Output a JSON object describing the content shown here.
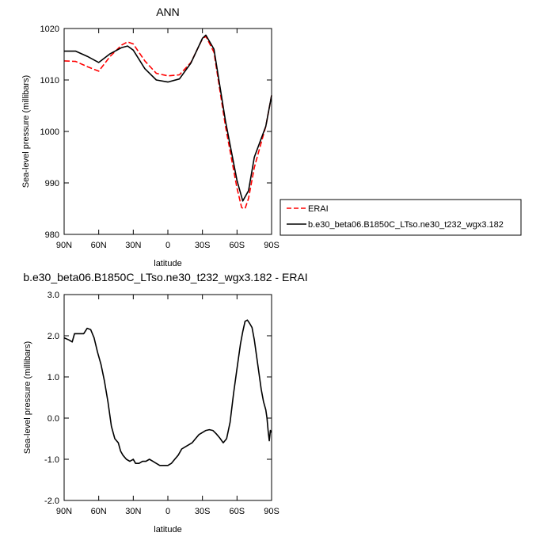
{
  "chart_data": [
    {
      "type": "line",
      "title": "ANN",
      "xlabel": "latitude",
      "ylabel": "Sea-level pressure (millibars)",
      "xlim": [
        90,
        -90
      ],
      "ylim": [
        980,
        1020
      ],
      "xticks": [
        90,
        60,
        30,
        0,
        -30,
        -60,
        -90
      ],
      "xtick_labels": [
        "90N",
        "60N",
        "30N",
        "0",
        "30S",
        "60S",
        "90S"
      ],
      "yticks": [
        980,
        990,
        1000,
        1010,
        1020
      ],
      "ytick_labels": [
        "980",
        "990",
        "1000",
        "1010",
        "1020"
      ],
      "grid": false,
      "legend_position": "right",
      "series": [
        {
          "name": "ERAI",
          "color": "#ff0000",
          "style": "dashed",
          "x": [
            90,
            80,
            70,
            60,
            50,
            40,
            35,
            30,
            20,
            10,
            0,
            -10,
            -20,
            -30,
            -33,
            -40,
            -50,
            -60,
            -64,
            -67,
            -70,
            -75,
            -80,
            -85,
            -90
          ],
          "y": [
            1013.7,
            1013.6,
            1012.6,
            1011.7,
            1014.6,
            1016.8,
            1017.4,
            1017.0,
            1013.7,
            1011.3,
            1010.8,
            1011.0,
            1013.4,
            1018.0,
            1018.5,
            1015.4,
            1001.0,
            989.0,
            985.2,
            985.0,
            987.0,
            993.0,
            997.0,
            1001.0,
            1007.0
          ]
        },
        {
          "name": "b.e30_beta06.B1850C_LTso.ne30_t232_wgx3.182",
          "color": "#000000",
          "style": "solid",
          "x": [
            90,
            80,
            70,
            60,
            50,
            40,
            35,
            30,
            20,
            10,
            0,
            -10,
            -20,
            -30,
            -33,
            -40,
            -50,
            -60,
            -65,
            -70,
            -75,
            -80,
            -85,
            -90
          ],
          "y": [
            1015.6,
            1015.6,
            1014.6,
            1013.4,
            1015.1,
            1016.3,
            1016.6,
            1015.8,
            1012.2,
            1010.0,
            1009.6,
            1010.2,
            1013.3,
            1018.1,
            1018.7,
            1016.0,
            1002.0,
            990.5,
            986.5,
            988.5,
            995.0,
            998.0,
            1001.0,
            1007.0
          ]
        }
      ]
    },
    {
      "type": "line",
      "title": "b.e30_beta06.B1850C_LTso.ne30_t232_wgx3.182 - ERAI",
      "xlabel": "latitude",
      "ylabel": "Sea-level pressure (millibars)",
      "xlim": [
        90,
        -90
      ],
      "ylim": [
        -2.0,
        3.0
      ],
      "xticks": [
        90,
        60,
        30,
        0,
        -30,
        -60,
        -90
      ],
      "xtick_labels": [
        "90N",
        "60N",
        "30N",
        "0",
        "30S",
        "60S",
        "90S"
      ],
      "yticks": [
        -2.0,
        -1.0,
        0.0,
        1.0,
        2.0,
        3.0
      ],
      "ytick_labels": [
        "-2.0",
        "-1.0",
        "0.0",
        "1.0",
        "2.0",
        "3.0"
      ],
      "grid": false,
      "series": [
        {
          "color": "#000000",
          "style": "solid",
          "x": [
            90,
            86,
            83,
            81,
            78,
            73,
            70,
            67,
            64,
            61,
            58,
            55,
            52,
            49,
            46,
            43,
            41,
            39,
            36,
            33,
            30,
            28,
            25,
            22,
            19,
            16,
            13,
            10,
            7,
            4,
            0,
            -3,
            -6,
            -9,
            -12,
            -15,
            -18,
            -21,
            -24,
            -27,
            -30,
            -33,
            -36,
            -39,
            -42,
            -45,
            -48,
            -51,
            -54,
            -57,
            -60,
            -63,
            -65,
            -67,
            -69,
            -71,
            -73,
            -75,
            -77,
            -79,
            -81,
            -83,
            -85,
            -86,
            -87,
            -88,
            -89,
            -90
          ],
          "y": [
            1.95,
            1.9,
            1.85,
            2.05,
            2.05,
            2.05,
            2.18,
            2.15,
            1.95,
            1.6,
            1.3,
            0.9,
            0.4,
            -0.2,
            -0.5,
            -0.6,
            -0.8,
            -0.9,
            -1.0,
            -1.05,
            -1.0,
            -1.1,
            -1.1,
            -1.05,
            -1.05,
            -1.0,
            -1.05,
            -1.1,
            -1.15,
            -1.15,
            -1.15,
            -1.1,
            -1.0,
            -0.9,
            -0.75,
            -0.7,
            -0.65,
            -0.6,
            -0.5,
            -0.4,
            -0.35,
            -0.3,
            -0.28,
            -0.3,
            -0.38,
            -0.48,
            -0.6,
            -0.5,
            -0.1,
            0.6,
            1.2,
            1.8,
            2.1,
            2.35,
            2.38,
            2.3,
            2.2,
            1.9,
            1.5,
            1.1,
            0.7,
            0.4,
            0.2,
            0.0,
            -0.3,
            -0.55,
            -0.3,
            -0.35
          ]
        }
      ]
    }
  ]
}
